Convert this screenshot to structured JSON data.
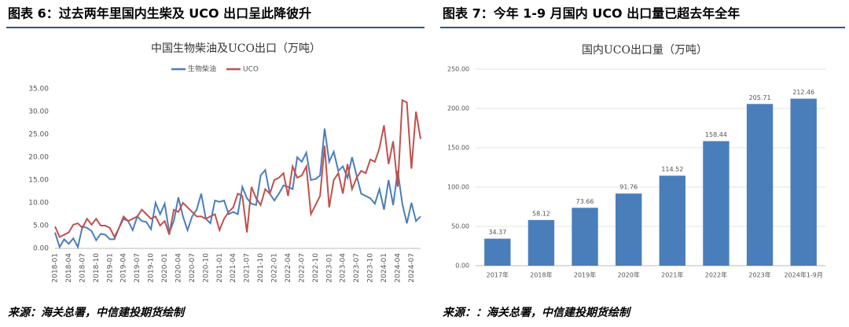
{
  "figures": [
    {
      "heading": "图表 6：过去两年里国内生柴及 UCO 出口呈此降彼升",
      "source": "来源：海关总署，中信建投期货绘制"
    },
    {
      "heading": "图表 7：今年 1-9 月国内 UCO 出口量已超去年全年",
      "source": "来源：：海关总署，中信建投期货绘制"
    }
  ],
  "chart_data": [
    {
      "type": "line",
      "title": "中国生物柴油及UCO出口（万吨）",
      "legend": "top",
      "grid": false,
      "categories": [
        "2018-01",
        null,
        null,
        "2018-04",
        null,
        null,
        "2018-07",
        null,
        null,
        "2018-10",
        null,
        null,
        "2019-01",
        null,
        null,
        "2019-04",
        null,
        null,
        "2019-07",
        null,
        null,
        "2019-10",
        null,
        null,
        "2020-01",
        null,
        null,
        "2020-04",
        null,
        null,
        "2020-07",
        null,
        null,
        "2020-10",
        null,
        null,
        "2021-01",
        null,
        null,
        "2021-04",
        null,
        null,
        "2021-07",
        null,
        null,
        "2021-10",
        null,
        null,
        "2022-01",
        null,
        null,
        "2022-04",
        null,
        null,
        "2022-07",
        null,
        null,
        "2022-10",
        null,
        null,
        "2023-01",
        null,
        null,
        "2023-04",
        null,
        null,
        "2023-07",
        null,
        null,
        "2023-10",
        null,
        null,
        "2024-01",
        null,
        null,
        "2024-04",
        null,
        null,
        "2024-07",
        null,
        null
      ],
      "series": [
        {
          "name": "生物柴油",
          "color": "#4a7ebb",
          "values": [
            3.5,
            0.3,
            2.0,
            1.0,
            2.2,
            0.3,
            4.8,
            4.5,
            3.8,
            1.8,
            3.2,
            3.0,
            2.0,
            2.0,
            4.5,
            6.5,
            6.0,
            4.0,
            7.0,
            6.0,
            5.8,
            4.2,
            10.0,
            7.5,
            9.8,
            3.5,
            6.0,
            11.2,
            7.0,
            4.0,
            7.0,
            8.5,
            12.0,
            6.5,
            5.5,
            10.5,
            10.2,
            10.5,
            7.5,
            8.0,
            7.5,
            13.5,
            11.0,
            9.8,
            9.5,
            16.0,
            17.2,
            12.0,
            10.5,
            12.0,
            13.8,
            13.5,
            13.0,
            20.0,
            19.0,
            21.0,
            15.0,
            15.2,
            16.0,
            26.3,
            19.0,
            21.2,
            17.0,
            18.0,
            15.5,
            20.0,
            16.0,
            12.0,
            11.5,
            11.0,
            9.8,
            13.0,
            8.5,
            15.0,
            9.5,
            17.0,
            9.8,
            5.5,
            10.0,
            6.0,
            7.0
          ]
        },
        {
          "name": "UCO",
          "color": "#c0504d",
          "values": [
            4.8,
            2.5,
            3.0,
            3.5,
            5.2,
            5.5,
            4.5,
            6.5,
            5.2,
            6.5,
            5.0,
            5.0,
            4.5,
            2.5,
            4.5,
            7.0,
            6.0,
            6.5,
            7.0,
            8.5,
            7.5,
            6.5,
            7.0,
            5.0,
            6.0,
            3.0,
            8.5,
            8.0,
            10.0,
            9.0,
            8.0,
            7.0,
            7.0,
            6.5,
            7.0,
            7.5,
            4.0,
            6.5,
            8.0,
            9.0,
            12.0,
            11.5,
            3.5,
            13.5,
            11.0,
            9.5,
            13.0,
            12.0,
            15.0,
            15.5,
            16.5,
            11.5,
            18.0,
            15.5,
            16.0,
            18.0,
            7.5,
            9.5,
            11.5,
            22.5,
            9.0,
            15.0,
            16.5,
            12.0,
            18.5,
            13.0,
            15.5,
            17.0,
            16.5,
            19.5,
            19.0,
            22.0,
            27.0,
            18.5,
            23.5,
            13.5,
            32.5,
            32.0,
            17.5,
            30.0,
            24.0
          ]
        }
      ],
      "ylim": [
        0,
        35
      ],
      "yticks": [
        {
          "value": 0,
          "label": "0.00"
        },
        {
          "value": 5,
          "label": "5.00"
        },
        {
          "value": 10,
          "label": "10.00"
        },
        {
          "value": 15,
          "label": "15.00"
        },
        {
          "value": 20,
          "label": "20.00"
        },
        {
          "value": 25,
          "label": "25.00"
        },
        {
          "value": 30,
          "label": "30.00"
        },
        {
          "value": 35,
          "label": "35.00"
        }
      ]
    },
    {
      "type": "bar",
      "title": "国内UCO出口量（万吨）",
      "color": "#4a7ebb",
      "grid": true,
      "categories": [
        "2017年",
        "2018年",
        "2019年",
        "2020年",
        "2021年",
        "2022年",
        "2023年",
        "2024年1-9月"
      ],
      "values": [
        34.37,
        58.12,
        73.66,
        91.76,
        114.52,
        158.44,
        205.71,
        212.46
      ],
      "ylim": [
        0,
        250
      ],
      "yticks": [
        {
          "value": 0,
          "label": "0.00"
        },
        {
          "value": 50,
          "label": "50.00"
        },
        {
          "value": 100,
          "label": "100.00"
        },
        {
          "value": 150,
          "label": "150.00"
        },
        {
          "value": 200,
          "label": "200.00"
        },
        {
          "value": 250,
          "label": "250.00"
        }
      ]
    }
  ]
}
